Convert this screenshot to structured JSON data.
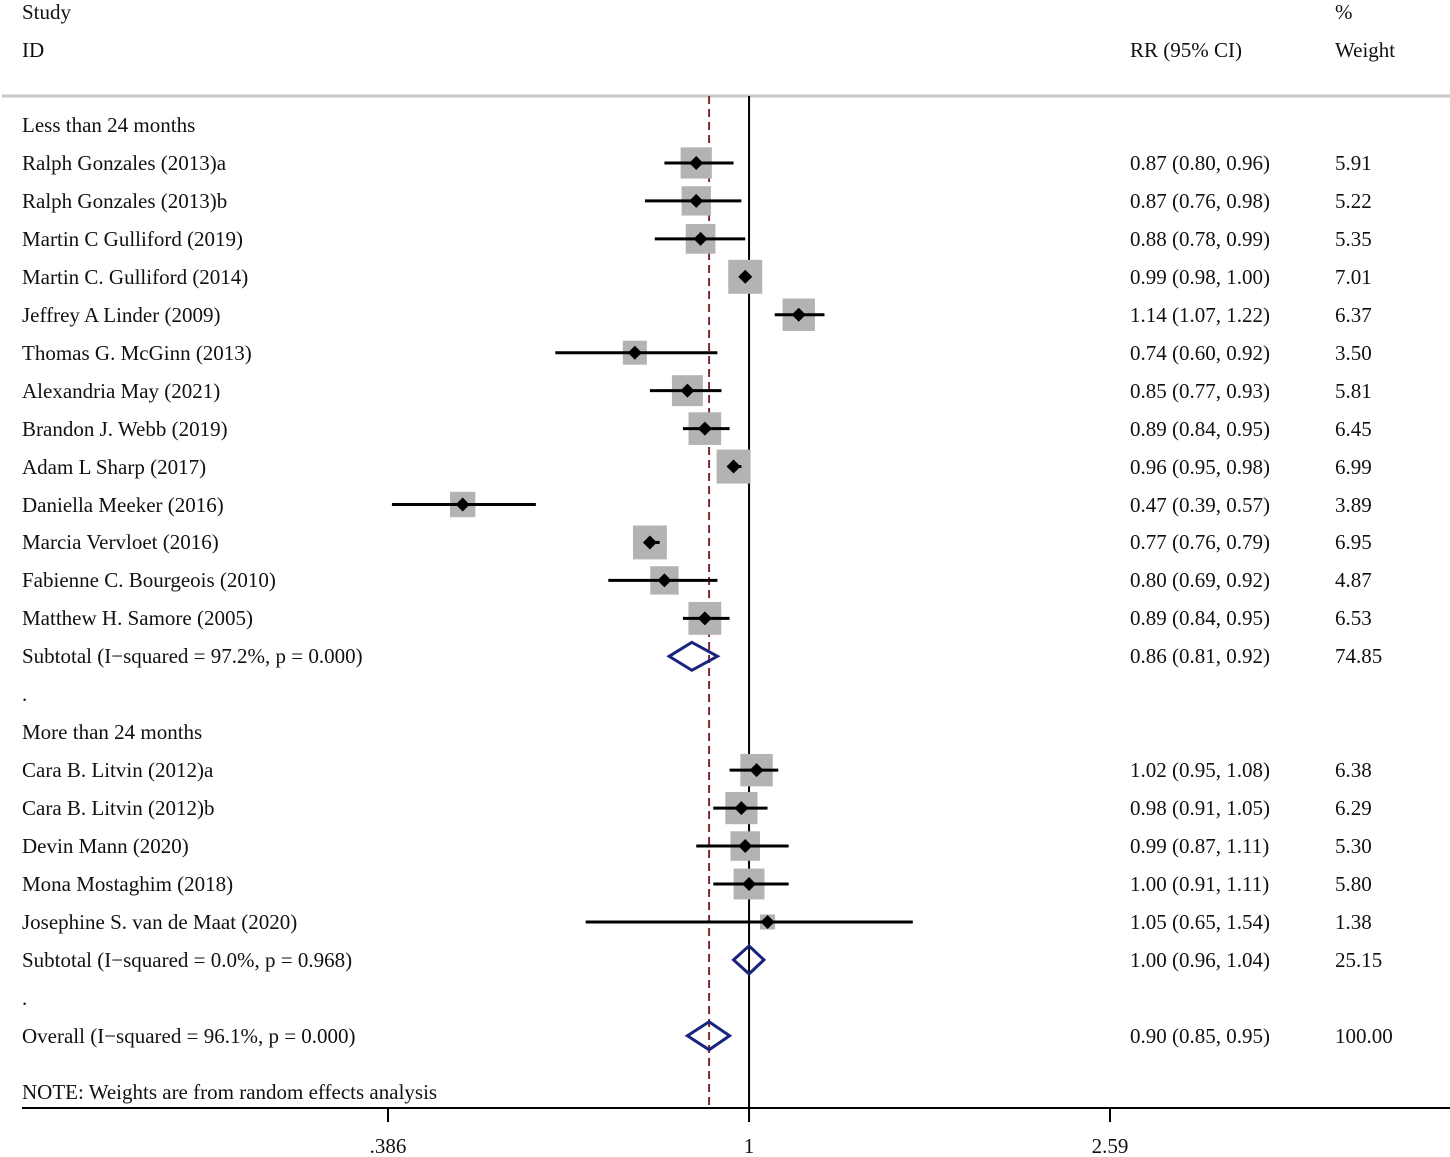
{
  "headers": {
    "study_line1": "Study",
    "study_line2": "ID",
    "rr": "RR (95% CI)",
    "weight_line1": "%",
    "weight_line2": "Weight"
  },
  "note": "NOTE: Weights are from random effects analysis",
  "colors": {
    "box": "#b3b3b3",
    "diamond": "#1a237e",
    "ref_line": "#000000",
    "overall_line": "#7b2d2d"
  },
  "chart_data": {
    "type": "forest",
    "x_scale": "log",
    "x_ticks": [
      {
        "value": 0.386,
        "label": ".386"
      },
      {
        "value": 1,
        "label": "1"
      },
      {
        "value": 2.59,
        "label": "2.59"
      }
    ],
    "xlim": [
      0.386,
      2.59
    ],
    "null_value": 1,
    "overall_effect": 0.9,
    "rows": [
      {
        "kind": "group",
        "label": "Less than 24 months"
      },
      {
        "kind": "study",
        "label": "Ralph Gonzales (2013)a",
        "rr": 0.87,
        "lo": 0.8,
        "hi": 0.96,
        "ci_text": "0.87 (0.80, 0.96)",
        "weight": 5.91,
        "weight_text": "5.91"
      },
      {
        "kind": "study",
        "label": "Ralph Gonzales (2013)b",
        "rr": 0.87,
        "lo": 0.76,
        "hi": 0.98,
        "ci_text": "0.87 (0.76, 0.98)",
        "weight": 5.22,
        "weight_text": "5.22"
      },
      {
        "kind": "study",
        "label": "Martin C Gulliford (2019)",
        "rr": 0.88,
        "lo": 0.78,
        "hi": 0.99,
        "ci_text": "0.88 (0.78, 0.99)",
        "weight": 5.35,
        "weight_text": "5.35"
      },
      {
        "kind": "study",
        "label": "Martin C. Gulliford (2014)",
        "rr": 0.99,
        "lo": 0.98,
        "hi": 1.0,
        "ci_text": "0.99 (0.98, 1.00)",
        "weight": 7.01,
        "weight_text": "7.01"
      },
      {
        "kind": "study",
        "label": "Jeffrey A Linder (2009)",
        "rr": 1.14,
        "lo": 1.07,
        "hi": 1.22,
        "ci_text": "1.14 (1.07, 1.22)",
        "weight": 6.37,
        "weight_text": "6.37"
      },
      {
        "kind": "study",
        "label": "Thomas G. McGinn (2013)",
        "rr": 0.74,
        "lo": 0.6,
        "hi": 0.92,
        "ci_text": "0.74 (0.60, 0.92)",
        "weight": 3.5,
        "weight_text": "3.50"
      },
      {
        "kind": "study",
        "label": "Alexandria May (2021)",
        "rr": 0.85,
        "lo": 0.77,
        "hi": 0.93,
        "ci_text": "0.85 (0.77, 0.93)",
        "weight": 5.81,
        "weight_text": "5.81"
      },
      {
        "kind": "study",
        "label": "Brandon J. Webb (2019)",
        "rr": 0.89,
        "lo": 0.84,
        "hi": 0.95,
        "ci_text": "0.89 (0.84, 0.95)",
        "weight": 6.45,
        "weight_text": "6.45"
      },
      {
        "kind": "study",
        "label": "Adam L Sharp (2017)",
        "rr": 0.96,
        "lo": 0.95,
        "hi": 0.98,
        "ci_text": "0.96 (0.95, 0.98)",
        "weight": 6.99,
        "weight_text": "6.99"
      },
      {
        "kind": "study",
        "label": "Daniella Meeker (2016)",
        "rr": 0.47,
        "lo": 0.39,
        "hi": 0.57,
        "ci_text": "0.47 (0.39, 0.57)",
        "weight": 3.89,
        "weight_text": "3.89"
      },
      {
        "kind": "study",
        "label": "Marcia Vervloet (2016)",
        "rr": 0.77,
        "lo": 0.76,
        "hi": 0.79,
        "ci_text": "0.77 (0.76, 0.79)",
        "weight": 6.95,
        "weight_text": "6.95"
      },
      {
        "kind": "study",
        "label": "Fabienne C. Bourgeois (2010)",
        "rr": 0.8,
        "lo": 0.69,
        "hi": 0.92,
        "ci_text": "0.80 (0.69, 0.92)",
        "weight": 4.87,
        "weight_text": "4.87"
      },
      {
        "kind": "study",
        "label": "Matthew H. Samore (2005)",
        "rr": 0.89,
        "lo": 0.84,
        "hi": 0.95,
        "ci_text": "0.89 (0.84, 0.95)",
        "weight": 6.53,
        "weight_text": "6.53"
      },
      {
        "kind": "subtotal",
        "label": "Subtotal  (I−squared = 97.2%, p = 0.000)",
        "rr": 0.86,
        "lo": 0.81,
        "hi": 0.92,
        "ci_text": "0.86 (0.81, 0.92)",
        "weight": 74.85,
        "weight_text": "74.85"
      },
      {
        "kind": "spacer",
        "label": "."
      },
      {
        "kind": "group",
        "label": "More than 24 months"
      },
      {
        "kind": "study",
        "label": "Cara B. Litvin (2012)a",
        "rr": 1.02,
        "lo": 0.95,
        "hi": 1.08,
        "ci_text": "1.02 (0.95, 1.08)",
        "weight": 6.38,
        "weight_text": "6.38"
      },
      {
        "kind": "study",
        "label": "Cara B. Litvin (2012)b",
        "rr": 0.98,
        "lo": 0.91,
        "hi": 1.05,
        "ci_text": "0.98 (0.91, 1.05)",
        "weight": 6.29,
        "weight_text": "6.29"
      },
      {
        "kind": "study",
        "label": "Devin Mann (2020)",
        "rr": 0.99,
        "lo": 0.87,
        "hi": 1.11,
        "ci_text": "0.99 (0.87, 1.11)",
        "weight": 5.3,
        "weight_text": "5.30"
      },
      {
        "kind": "study",
        "label": "Mona Mostaghim (2018)",
        "rr": 1.0,
        "lo": 0.91,
        "hi": 1.11,
        "ci_text": "1.00 (0.91, 1.11)",
        "weight": 5.8,
        "weight_text": "5.80"
      },
      {
        "kind": "study",
        "label": "Josephine S. van de Maat (2020)",
        "rr": 1.05,
        "lo": 0.65,
        "hi": 1.54,
        "ci_text": "1.05 (0.65, 1.54)",
        "weight": 1.38,
        "weight_text": "1.38"
      },
      {
        "kind": "subtotal",
        "label": "Subtotal  (I−squared = 0.0%, p = 0.968)",
        "rr": 1.0,
        "lo": 0.96,
        "hi": 1.04,
        "ci_text": "1.00 (0.96, 1.04)",
        "weight": 25.15,
        "weight_text": "25.15"
      },
      {
        "kind": "spacer",
        "label": "."
      },
      {
        "kind": "overall",
        "label": "Overall  (I−squared = 96.1%, p = 0.000)",
        "rr": 0.9,
        "lo": 0.85,
        "hi": 0.95,
        "ci_text": "0.90 (0.85, 0.95)",
        "weight": 100.0,
        "weight_text": "100.00"
      }
    ]
  }
}
